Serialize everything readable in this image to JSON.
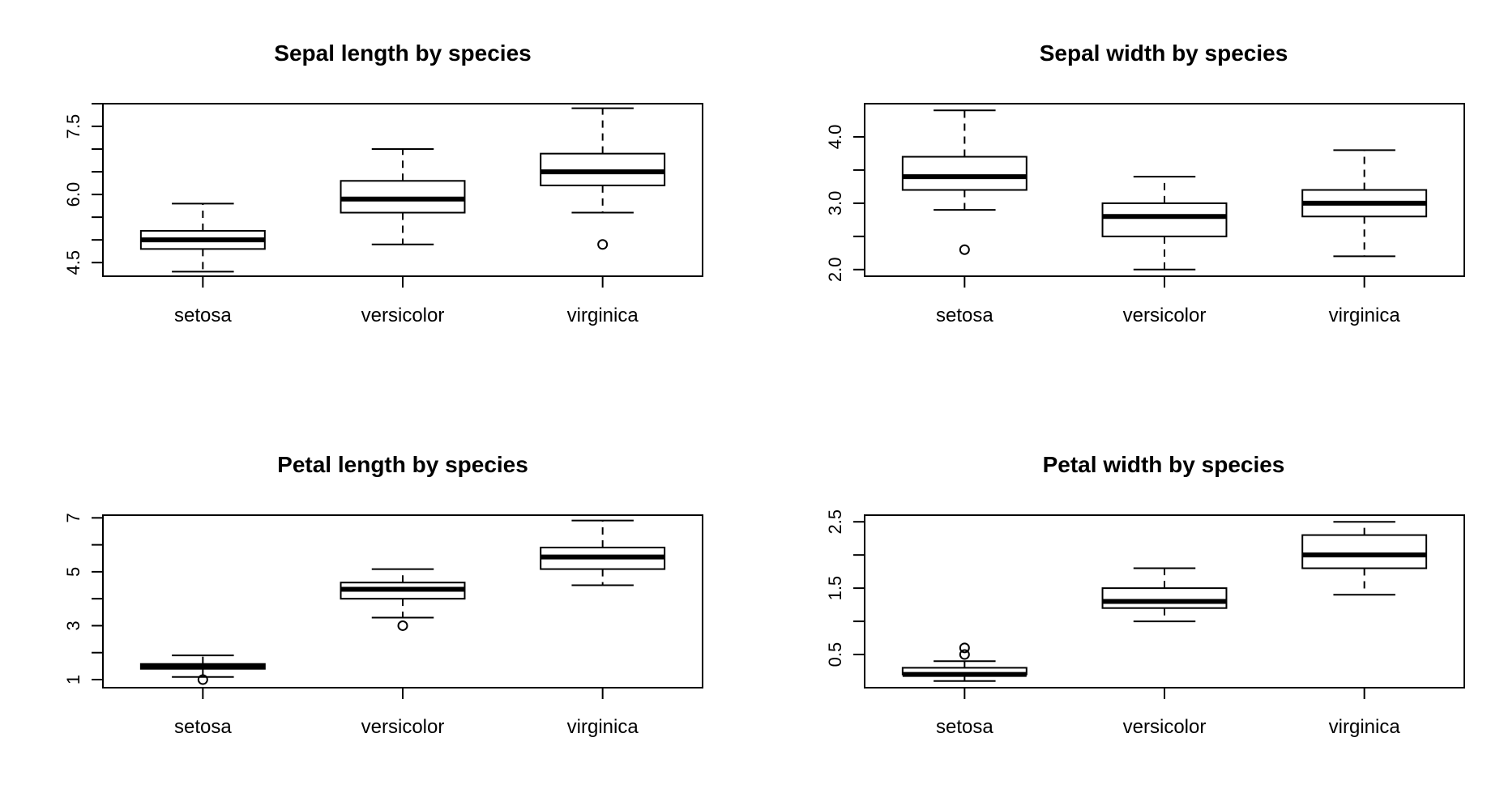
{
  "chart_data": [
    {
      "type": "boxplot",
      "title": "Sepal length by species",
      "categories": [
        "setosa",
        "versicolor",
        "virginica"
      ],
      "ylim": [
        4.2,
        8.0
      ],
      "yticks": [
        4.5,
        5.0,
        5.5,
        6.0,
        6.5,
        7.0,
        7.5,
        8.0
      ],
      "ytick_labels": [
        {
          "value": 4.5,
          "label": "4.5"
        },
        {
          "value": 6.0,
          "label": "6.0"
        },
        {
          "value": 7.5,
          "label": "7.5"
        }
      ],
      "boxes": [
        {
          "min": 4.3,
          "q1": 4.8,
          "median": 5.0,
          "q3": 5.2,
          "max": 5.8,
          "outliers": []
        },
        {
          "min": 4.9,
          "q1": 5.6,
          "median": 5.9,
          "q3": 6.3,
          "max": 7.0,
          "outliers": []
        },
        {
          "min": 5.6,
          "q1": 6.2,
          "median": 6.5,
          "q3": 6.9,
          "max": 7.9,
          "outliers": [
            4.9
          ]
        }
      ]
    },
    {
      "type": "boxplot",
      "title": "Sepal width by species",
      "categories": [
        "setosa",
        "versicolor",
        "virginica"
      ],
      "ylim": [
        1.9,
        4.5
      ],
      "yticks": [
        2.0,
        2.5,
        3.0,
        3.5,
        4.0
      ],
      "ytick_labels": [
        {
          "value": 2.0,
          "label": "2.0"
        },
        {
          "value": 3.0,
          "label": "3.0"
        },
        {
          "value": 4.0,
          "label": "4.0"
        }
      ],
      "boxes": [
        {
          "min": 2.9,
          "q1": 3.2,
          "median": 3.4,
          "q3": 3.7,
          "max": 4.4,
          "outliers": [
            2.3
          ]
        },
        {
          "min": 2.0,
          "q1": 2.5,
          "median": 2.8,
          "q3": 3.0,
          "max": 3.4,
          "outliers": []
        },
        {
          "min": 2.2,
          "q1": 2.8,
          "median": 3.0,
          "q3": 3.2,
          "max": 3.8,
          "outliers": []
        }
      ]
    },
    {
      "type": "boxplot",
      "title": "Petal length by species",
      "categories": [
        "setosa",
        "versicolor",
        "virginica"
      ],
      "ylim": [
        0.7,
        7.1
      ],
      "yticks": [
        1,
        2,
        3,
        4,
        5,
        6,
        7
      ],
      "ytick_labels": [
        {
          "value": 1,
          "label": "1"
        },
        {
          "value": 3,
          "label": "3"
        },
        {
          "value": 5,
          "label": "5"
        },
        {
          "value": 7,
          "label": "7"
        }
      ],
      "boxes": [
        {
          "min": 1.1,
          "q1": 1.4,
          "median": 1.5,
          "q3": 1.58,
          "max": 1.9,
          "outliers": [
            1.0
          ]
        },
        {
          "min": 3.3,
          "q1": 4.0,
          "median": 4.35,
          "q3": 4.6,
          "max": 5.1,
          "outliers": [
            3.0
          ]
        },
        {
          "min": 4.5,
          "q1": 5.1,
          "median": 5.55,
          "q3": 5.9,
          "max": 6.9,
          "outliers": []
        }
      ]
    },
    {
      "type": "boxplot",
      "title": "Petal width by species",
      "categories": [
        "setosa",
        "versicolor",
        "virginica"
      ],
      "ylim": [
        0.0,
        2.6
      ],
      "yticks": [
        0.5,
        1.0,
        1.5,
        2.0,
        2.5
      ],
      "ytick_labels": [
        {
          "value": 0.5,
          "label": "0.5"
        },
        {
          "value": 1.5,
          "label": "1.5"
        },
        {
          "value": 2.5,
          "label": "2.5"
        }
      ],
      "boxes": [
        {
          "min": 0.1,
          "q1": 0.2,
          "median": 0.2,
          "q3": 0.3,
          "max": 0.4,
          "outliers": [
            0.5,
            0.6
          ]
        },
        {
          "min": 1.0,
          "q1": 1.2,
          "median": 1.3,
          "q3": 1.5,
          "max": 1.8,
          "outliers": []
        },
        {
          "min": 1.4,
          "q1": 1.8,
          "median": 2.0,
          "q3": 2.3,
          "max": 2.5,
          "outliers": []
        }
      ]
    }
  ]
}
